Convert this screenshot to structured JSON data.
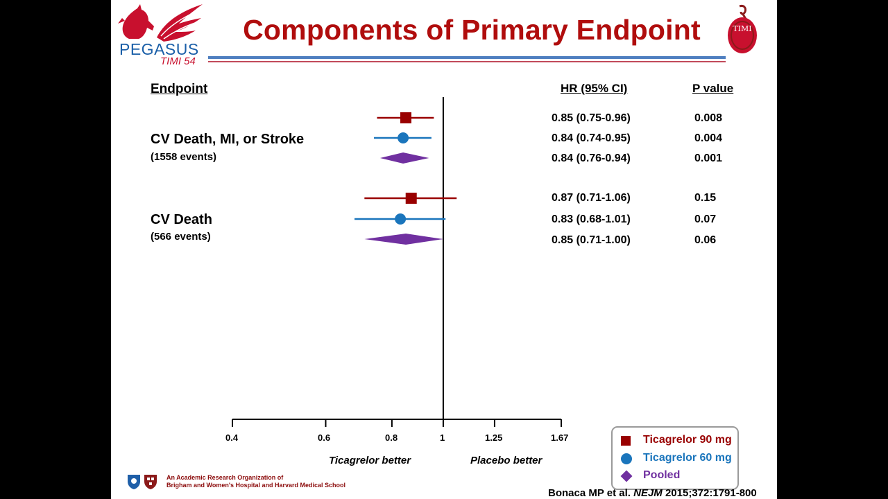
{
  "slide": {
    "title": "Components of Primary Endpoint",
    "logo_text": "PEGASUS",
    "logo_subtext": "TIMI 54",
    "timi_logo_text": "TIMI"
  },
  "headers": {
    "endpoint": "Endpoint",
    "hr": "HR (95% CI)",
    "p": "P value"
  },
  "chart_data": {
    "type": "forest",
    "x_scale": "log",
    "x_ticks": [
      "0.4",
      "0.6",
      "0.8",
      "1",
      "1.25",
      "1.67"
    ],
    "x_tick_values": [
      0.4,
      0.6,
      0.8,
      1,
      1.25,
      1.67
    ],
    "reference_line": 1,
    "left_label": "Ticagrelor better",
    "right_label": "Placebo better",
    "series": [
      {
        "name": "Ticagrelor 90 mg",
        "color": "#990000",
        "marker": "square"
      },
      {
        "name": "Ticagrelor 60 mg",
        "color": "#1a75bc",
        "marker": "circle"
      },
      {
        "name": "Pooled",
        "color": "#7030a0",
        "marker": "diamond"
      }
    ],
    "endpoints": [
      {
        "name": "CV Death, MI, or Stroke",
        "events": "(1558 events)",
        "rows": [
          {
            "series": "Ticagrelor 90 mg",
            "hr": 0.85,
            "lo": 0.75,
            "hi": 0.96,
            "hr_text": "0.85 (0.75-0.96)",
            "p": "0.008"
          },
          {
            "series": "Ticagrelor 60 mg",
            "hr": 0.84,
            "lo": 0.74,
            "hi": 0.95,
            "hr_text": "0.84 (0.74-0.95)",
            "p": "0.004"
          },
          {
            "series": "Pooled",
            "hr": 0.84,
            "lo": 0.76,
            "hi": 0.94,
            "hr_text": "0.84 (0.76-0.94)",
            "p": "0.001"
          }
        ]
      },
      {
        "name": "CV Death",
        "events": "(566 events)",
        "rows": [
          {
            "series": "Ticagrelor 90 mg",
            "hr": 0.87,
            "lo": 0.71,
            "hi": 1.06,
            "hr_text": "0.87 (0.71-1.06)",
            "p": "0.15"
          },
          {
            "series": "Ticagrelor 60 mg",
            "hr": 0.83,
            "lo": 0.68,
            "hi": 1.01,
            "hr_text": "0.83 (0.68-1.01)",
            "p": "0.07"
          },
          {
            "series": "Pooled",
            "hr": 0.85,
            "lo": 0.71,
            "hi": 1.0,
            "hr_text": "0.85 (0.71-1.00)",
            "p": "0.06"
          }
        ]
      }
    ]
  },
  "footer": {
    "org_line1": "An Academic Research Organization of",
    "org_line2": "Brigham and Women's Hospital and Harvard Medical School",
    "citation_authors": "Bonaca MP et al. ",
    "citation_journal": "NEJM",
    "citation_ref": " 2015;372:1791-800"
  }
}
